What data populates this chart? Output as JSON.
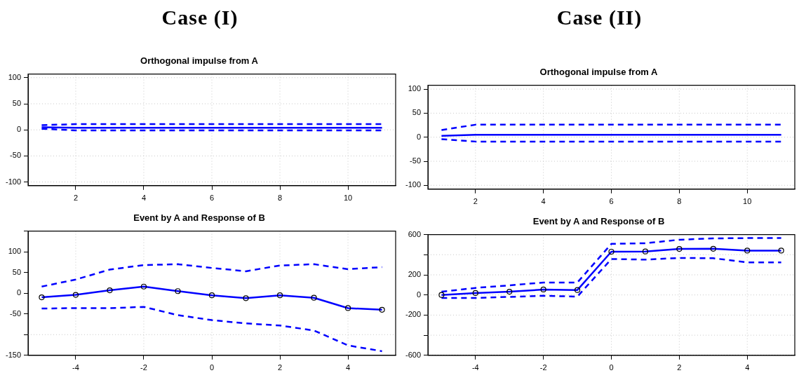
{
  "chart_data": [
    {
      "type": "line",
      "title": "Case (I)",
      "subtitle": "Orthogonal impulse from A",
      "x": [
        1,
        2,
        3,
        4,
        5,
        6,
        7,
        8,
        9,
        10,
        11
      ],
      "xlim": [
        0.6,
        11.4
      ],
      "xticks": [
        2,
        4,
        6,
        8,
        10
      ],
      "ylim": [
        -107,
        107
      ],
      "yticks": [
        -100,
        -50,
        0,
        50,
        100
      ],
      "grid": true,
      "legend": false,
      "series": [
        {
          "color": "#0000ff",
          "line_style": "solid",
          "marker": "none",
          "values": [
            5,
            4,
            4,
            4,
            4,
            4,
            4,
            4,
            4,
            4,
            4
          ]
        },
        {
          "color": "#0000ff",
          "line_style": "dashed",
          "marker": "none",
          "values": [
            9,
            11,
            11,
            11,
            11,
            11,
            11,
            11,
            11,
            11,
            11
          ]
        },
        {
          "color": "#0000ff",
          "line_style": "dashed",
          "marker": "none",
          "values": [
            2,
            -1,
            -1,
            -1,
            -1,
            -1,
            -1,
            -1,
            -1,
            -1,
            -1
          ]
        }
      ]
    },
    {
      "type": "line",
      "title": "Case (II)",
      "subtitle": "Orthogonal impulse from A",
      "x": [
        1,
        2,
        3,
        4,
        5,
        6,
        7,
        8,
        9,
        10,
        11
      ],
      "xlim": [
        0.6,
        11.4
      ],
      "xticks": [
        2,
        4,
        6,
        8,
        10
      ],
      "ylim": [
        -108,
        108
      ],
      "yticks": [
        -100,
        -50,
        0,
        50,
        100
      ],
      "grid": true,
      "legend": false,
      "series": [
        {
          "color": "#0000ff",
          "line_style": "solid",
          "marker": "none",
          "values": [
            3,
            5,
            5,
            5,
            5,
            5,
            5,
            5,
            5,
            5,
            5
          ]
        },
        {
          "color": "#0000ff",
          "line_style": "dashed",
          "marker": "none",
          "values": [
            15,
            26,
            26,
            26,
            26,
            26,
            26,
            26,
            26,
            26,
            26
          ]
        },
        {
          "color": "#0000ff",
          "line_style": "dashed",
          "marker": "none",
          "values": [
            -4,
            -9,
            -9,
            -9,
            -9,
            -9,
            -9,
            -9,
            -9,
            -9,
            -9
          ]
        }
      ]
    },
    {
      "type": "line",
      "title": "Event by A and Response of B",
      "x": [
        -5,
        -4,
        -3,
        -2,
        -1,
        0,
        1,
        2,
        3,
        4,
        5
      ],
      "xlim": [
        -5.4,
        5.4
      ],
      "xticks": [
        -4,
        -2,
        0,
        2,
        4
      ],
      "ylim": [
        -150,
        150
      ],
      "yticks": [
        {
          "value": 150,
          "label": null
        },
        100,
        50,
        0,
        -50,
        {
          "value": -100,
          "label": null
        },
        -150
      ],
      "grid": true,
      "legend": false,
      "series": [
        {
          "color": "#0000ff",
          "line_style": "solid",
          "marker": "circle",
          "values": [
            -10,
            -4,
            7,
            16,
            5,
            -5,
            -12,
            -5,
            -11,
            -36,
            -40
          ]
        },
        {
          "color": "#0000ff",
          "line_style": "dashed",
          "marker": "none",
          "values": [
            16,
            33,
            57,
            68,
            70,
            61,
            53,
            67,
            70,
            58,
            63
          ]
        },
        {
          "color": "#0000ff",
          "line_style": "dashed",
          "marker": "none",
          "values": [
            -37,
            -36,
            -36,
            -33,
            -53,
            -65,
            -73,
            -78,
            -90,
            -126,
            -140
          ]
        }
      ]
    },
    {
      "type": "line",
      "title": "Event by A and Response of B",
      "x": [
        -5,
        -4,
        -3,
        -2,
        -1,
        0,
        1,
        2,
        3,
        4,
        5
      ],
      "xlim": [
        -5.4,
        5.4
      ],
      "xticks": [
        -4,
        -2,
        0,
        2,
        4
      ],
      "ylim": [
        -600,
        600
      ],
      "yticks": [
        600,
        {
          "value": 400,
          "label": null
        },
        200,
        0,
        -200,
        {
          "value": -400,
          "label": null
        },
        -600
      ],
      "grid": true,
      "legend": false,
      "series": [
        {
          "color": "#0000ff",
          "line_style": "solid",
          "marker": "circle",
          "values": [
            0,
            19,
            32,
            54,
            49,
            430,
            432,
            457,
            459,
            441,
            441
          ]
        },
        {
          "color": "#0000ff",
          "line_style": "dashed",
          "marker": "none",
          "values": [
            32,
            70,
            95,
            124,
            124,
            508,
            514,
            549,
            562,
            565,
            565
          ]
        },
        {
          "color": "#0000ff",
          "line_style": "dashed",
          "marker": "none",
          "values": [
            -30,
            -30,
            -19,
            -8,
            -16,
            357,
            351,
            368,
            365,
            324,
            324
          ]
        }
      ]
    }
  ]
}
